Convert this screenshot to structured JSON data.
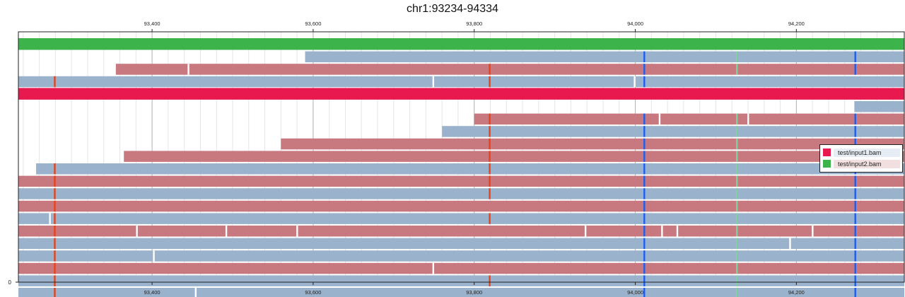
{
  "chart_data": {
    "type": "pileup",
    "title": "chr1:93234-94334",
    "region": {
      "chrom": "chr1",
      "start": 93234,
      "end": 94334
    },
    "xlim": [
      93234,
      94334
    ],
    "x_ticks": [
      93400,
      93600,
      93800,
      94000,
      94200
    ],
    "x_tick_labels": [
      "93,400",
      "93,600",
      "93,800",
      "94,000",
      "94,200"
    ],
    "y_tick_labels": [
      "0"
    ],
    "grid": true,
    "legend_position": "right",
    "legend": [
      {
        "label": "test/input1.bam",
        "color": "#e8194f",
        "background": "#e7edf4"
      },
      {
        "label": "test/input2.bam",
        "color": "#3cb44b",
        "background": "#f2e0e0"
      }
    ],
    "colors": {
      "reverse_read": "#c8787f",
      "forward_read": "#9ab2cc",
      "coverage_input1": "#e8194f",
      "coverage_input2": "#3cb44b",
      "mismatch_colors": {
        "A": "#1c5ef0",
        "C": "#e6431b",
        "G": "#7fd19c",
        "T": "#ffffff"
      }
    },
    "coverage": [
      {
        "track": "test/input2.bam",
        "row": 0,
        "start": 93234,
        "end": 94334
      },
      {
        "track": "test/input1.bam",
        "row": 4,
        "start": 93234,
        "end": 94334
      }
    ],
    "reads": [
      {
        "row": 1,
        "start": 93590,
        "end": 94334,
        "strand": "+"
      },
      {
        "row": 2,
        "start": 93355,
        "end": 94334,
        "strand": "-"
      },
      {
        "row": 3,
        "start": 93234,
        "end": 94334,
        "strand": "+"
      },
      {
        "row": 5,
        "start": 94272,
        "end": 94334,
        "strand": "+"
      },
      {
        "row": 6,
        "start": 93800,
        "end": 94334,
        "strand": "-"
      },
      {
        "row": 7,
        "start": 93760,
        "end": 94334,
        "strand": "+"
      },
      {
        "row": 8,
        "start": 93560,
        "end": 94334,
        "strand": "-"
      },
      {
        "row": 9,
        "start": 93365,
        "end": 94334,
        "strand": "-"
      },
      {
        "row": 10,
        "start": 93256,
        "end": 94334,
        "strand": "+"
      },
      {
        "row": 11,
        "start": 93234,
        "end": 94334,
        "strand": "-"
      },
      {
        "row": 12,
        "start": 93234,
        "end": 94334,
        "strand": "+"
      },
      {
        "row": 13,
        "start": 93234,
        "end": 94334,
        "strand": "-"
      },
      {
        "row": 14,
        "start": 93234,
        "end": 94334,
        "strand": "+"
      },
      {
        "row": 15,
        "start": 93234,
        "end": 94334,
        "strand": "-"
      },
      {
        "row": 16,
        "start": 93234,
        "end": 94334,
        "strand": "+"
      },
      {
        "row": 17,
        "start": 93234,
        "end": 94334,
        "strand": "+"
      },
      {
        "row": 18,
        "start": 93234,
        "end": 94334,
        "strand": "-"
      },
      {
        "row": 19,
        "start": 93234,
        "end": 94334,
        "strand": "+"
      },
      {
        "row": 20,
        "start": 93234,
        "end": 94334,
        "strand": "+"
      }
    ],
    "mismatches": [
      {
        "row": 1,
        "pos": 94011,
        "base": "A"
      },
      {
        "row": 1,
        "pos": 94126,
        "base": "G"
      },
      {
        "row": 1,
        "pos": 94273,
        "base": "A"
      },
      {
        "row": 2,
        "pos": 93445,
        "base": "T"
      },
      {
        "row": 2,
        "pos": 93819,
        "base": "C"
      },
      {
        "row": 2,
        "pos": 94011,
        "base": "A"
      },
      {
        "row": 2,
        "pos": 94126,
        "base": "G"
      },
      {
        "row": 2,
        "pos": 94273,
        "base": "A"
      },
      {
        "row": 3,
        "pos": 93279,
        "base": "C"
      },
      {
        "row": 3,
        "pos": 93749,
        "base": "T"
      },
      {
        "row": 3,
        "pos": 93819,
        "base": "C"
      },
      {
        "row": 3,
        "pos": 93999,
        "base": "T"
      },
      {
        "row": 3,
        "pos": 94011,
        "base": "A"
      },
      {
        "row": 6,
        "pos": 93819,
        "base": "C"
      },
      {
        "row": 6,
        "pos": 94011,
        "base": "A"
      },
      {
        "row": 6,
        "pos": 94030,
        "base": "T"
      },
      {
        "row": 6,
        "pos": 94126,
        "base": "G"
      },
      {
        "row": 6,
        "pos": 94140,
        "base": "T"
      },
      {
        "row": 6,
        "pos": 94273,
        "base": "A"
      },
      {
        "row": 7,
        "pos": 93819,
        "base": "C"
      },
      {
        "row": 7,
        "pos": 94011,
        "base": "A"
      },
      {
        "row": 7,
        "pos": 94126,
        "base": "G"
      },
      {
        "row": 7,
        "pos": 94273,
        "base": "A"
      },
      {
        "row": 8,
        "pos": 93819,
        "base": "C"
      },
      {
        "row": 8,
        "pos": 94011,
        "base": "A"
      },
      {
        "row": 8,
        "pos": 94126,
        "base": "G"
      },
      {
        "row": 8,
        "pos": 94273,
        "base": "A"
      },
      {
        "row": 9,
        "pos": 93819,
        "base": "C"
      },
      {
        "row": 9,
        "pos": 94011,
        "base": "A"
      },
      {
        "row": 9,
        "pos": 94126,
        "base": "G"
      },
      {
        "row": 9,
        "pos": 94273,
        "base": "A"
      },
      {
        "row": 10,
        "pos": 93279,
        "base": "C"
      },
      {
        "row": 10,
        "pos": 93819,
        "base": "C"
      },
      {
        "row": 10,
        "pos": 94011,
        "base": "A"
      },
      {
        "row": 10,
        "pos": 94126,
        "base": "G"
      },
      {
        "row": 10,
        "pos": 94273,
        "base": "A"
      },
      {
        "row": 11,
        "pos": 93279,
        "base": "C"
      },
      {
        "row": 11,
        "pos": 93819,
        "base": "C"
      },
      {
        "row": 11,
        "pos": 94011,
        "base": "A"
      },
      {
        "row": 11,
        "pos": 94126,
        "base": "G"
      },
      {
        "row": 11,
        "pos": 94273,
        "base": "A"
      },
      {
        "row": 12,
        "pos": 93279,
        "base": "C"
      },
      {
        "row": 12,
        "pos": 93819,
        "base": "C"
      },
      {
        "row": 12,
        "pos": 94011,
        "base": "A"
      },
      {
        "row": 12,
        "pos": 94126,
        "base": "G"
      },
      {
        "row": 12,
        "pos": 94273,
        "base": "A"
      },
      {
        "row": 13,
        "pos": 93279,
        "base": "C"
      },
      {
        "row": 13,
        "pos": 94011,
        "base": "A"
      },
      {
        "row": 13,
        "pos": 94126,
        "base": "G"
      },
      {
        "row": 13,
        "pos": 94273,
        "base": "A"
      },
      {
        "row": 14,
        "pos": 93273,
        "base": "T"
      },
      {
        "row": 14,
        "pos": 93279,
        "base": "C"
      },
      {
        "row": 14,
        "pos": 93819,
        "base": "C"
      },
      {
        "row": 14,
        "pos": 94011,
        "base": "A"
      },
      {
        "row": 14,
        "pos": 94126,
        "base": "G"
      },
      {
        "row": 14,
        "pos": 94273,
        "base": "A"
      },
      {
        "row": 15,
        "pos": 93279,
        "base": "C"
      },
      {
        "row": 15,
        "pos": 93381,
        "base": "T"
      },
      {
        "row": 15,
        "pos": 93492,
        "base": "T"
      },
      {
        "row": 15,
        "pos": 93580,
        "base": "T"
      },
      {
        "row": 15,
        "pos": 93938,
        "base": "T"
      },
      {
        "row": 15,
        "pos": 94011,
        "base": "A"
      },
      {
        "row": 15,
        "pos": 94033,
        "base": "T"
      },
      {
        "row": 15,
        "pos": 94052,
        "base": "T"
      },
      {
        "row": 15,
        "pos": 94126,
        "base": "G"
      },
      {
        "row": 15,
        "pos": 94220,
        "base": "T"
      },
      {
        "row": 15,
        "pos": 94273,
        "base": "A"
      },
      {
        "row": 16,
        "pos": 93279,
        "base": "C"
      },
      {
        "row": 16,
        "pos": 94011,
        "base": "A"
      },
      {
        "row": 16,
        "pos": 94126,
        "base": "G"
      },
      {
        "row": 16,
        "pos": 94192,
        "base": "T"
      },
      {
        "row": 16,
        "pos": 94273,
        "base": "A"
      },
      {
        "row": 17,
        "pos": 93279,
        "base": "C"
      },
      {
        "row": 17,
        "pos": 93402,
        "base": "T"
      },
      {
        "row": 17,
        "pos": 94011,
        "base": "A"
      },
      {
        "row": 17,
        "pos": 94126,
        "base": "G"
      },
      {
        "row": 17,
        "pos": 94273,
        "base": "A"
      },
      {
        "row": 18,
        "pos": 93279,
        "base": "C"
      },
      {
        "row": 18,
        "pos": 93749,
        "base": "T"
      },
      {
        "row": 18,
        "pos": 94011,
        "base": "A"
      },
      {
        "row": 18,
        "pos": 94126,
        "base": "G"
      },
      {
        "row": 18,
        "pos": 94273,
        "base": "A"
      },
      {
        "row": 19,
        "pos": 93279,
        "base": "C"
      },
      {
        "row": 19,
        "pos": 93819,
        "base": "C"
      },
      {
        "row": 19,
        "pos": 94011,
        "base": "A"
      },
      {
        "row": 19,
        "pos": 94126,
        "base": "G"
      },
      {
        "row": 19,
        "pos": 94273,
        "base": "A"
      },
      {
        "row": 20,
        "pos": 93279,
        "base": "C"
      },
      {
        "row": 20,
        "pos": 93454,
        "base": "T"
      },
      {
        "row": 20,
        "pos": 94011,
        "base": "A"
      },
      {
        "row": 20,
        "pos": 94126,
        "base": "G"
      },
      {
        "row": 20,
        "pos": 94273,
        "base": "A"
      }
    ]
  }
}
